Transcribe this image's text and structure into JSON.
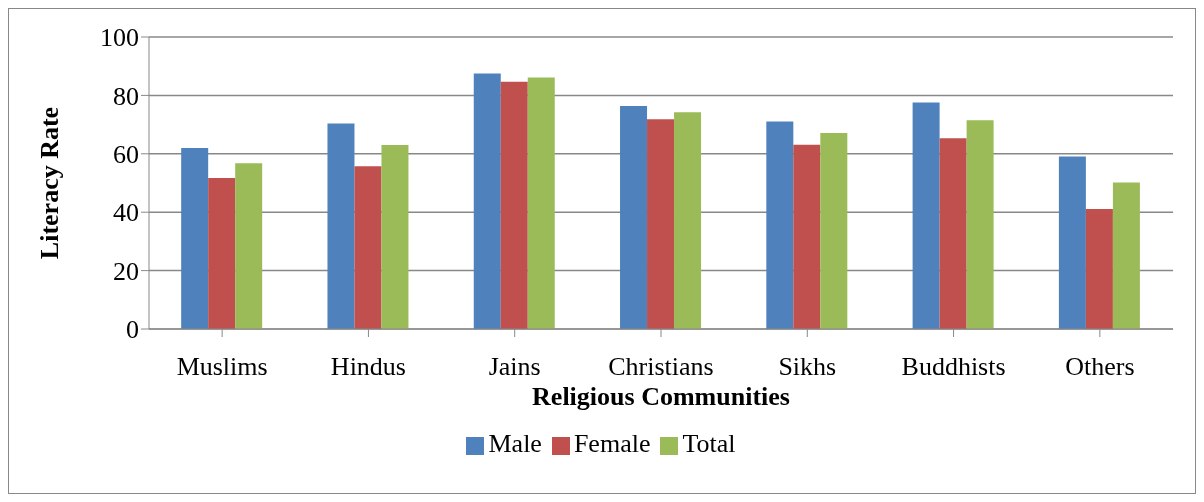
{
  "chart_data": {
    "type": "bar",
    "xlabel": "Religious Communities",
    "ylabel": "Literacy Rate",
    "categories": [
      "Muslims",
      "Hindus",
      "Jains",
      "Christians",
      "Sikhs",
      "Buddhists",
      "Others"
    ],
    "series": [
      {
        "name": "Male",
        "color": "#4f81bd",
        "values": [
          62.0,
          70.4,
          87.5,
          76.4,
          71.1,
          77.6,
          59.1
        ]
      },
      {
        "name": "Female",
        "color": "#c0504d",
        "values": [
          51.7,
          55.7,
          84.7,
          71.8,
          63.1,
          65.3,
          41.1
        ]
      },
      {
        "name": "Total",
        "color": "#9bbb59",
        "values": [
          56.8,
          63.0,
          86.1,
          74.2,
          67.1,
          71.5,
          50.2
        ]
      }
    ],
    "ylim": [
      0,
      100
    ],
    "yticks": [
      0,
      20,
      40,
      60,
      80,
      100
    ],
    "grid": "y",
    "legend": "bottom"
  }
}
